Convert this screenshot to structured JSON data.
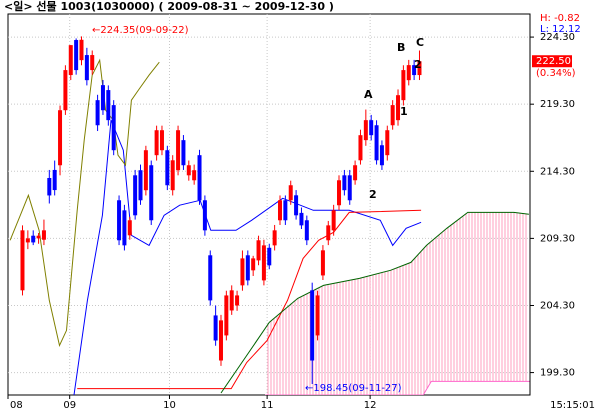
{
  "chart_data": {
    "type": "candlestick",
    "title": "<일> 선물 1003(1030000) ( 2009-08-31 ~ 2009-12-30 )",
    "up_color": "#ff0000",
    "down_color": "#0000ff",
    "values": [
      [
        205.43,
        210.27,
        205.05,
        209.9
      ],
      [
        209.0,
        209.9,
        208.5,
        209.3
      ],
      [
        209.5,
        209.9,
        208.8,
        209.0
      ],
      [
        209.3,
        209.7,
        208.9,
        209.5
      ],
      [
        209.2,
        210.7,
        208.8,
        209.9
      ],
      [
        213.8,
        214.4,
        211.9,
        212.5
      ],
      [
        214.4,
        215.1,
        212.5,
        212.9
      ],
      [
        214.75,
        219.2,
        214.0,
        218.85
      ],
      [
        218.85,
        222.2,
        218.5,
        221.84
      ],
      [
        221.47,
        223.7,
        221.1,
        223.7
      ],
      [
        224.08,
        224.2,
        221.5,
        221.84
      ],
      [
        222.58,
        224.35,
        222.2,
        224.1
      ],
      [
        222.96,
        223.5,
        220.7,
        221.09
      ],
      [
        221.84,
        223.3,
        221.5,
        222.96
      ],
      [
        219.6,
        220.0,
        217.3,
        217.73
      ],
      [
        220.72,
        221.1,
        218.5,
        218.85
      ],
      [
        220.35,
        220.7,
        217.7,
        218.11
      ],
      [
        219.23,
        219.6,
        215.5,
        215.87
      ],
      [
        212.14,
        212.5,
        208.8,
        209.16
      ],
      [
        211.39,
        211.8,
        208.4,
        208.78
      ],
      [
        209.53,
        210.9,
        209.2,
        210.65
      ],
      [
        214.0,
        214.4,
        210.7,
        211.02
      ],
      [
        214.38,
        214.8,
        211.8,
        212.14
      ],
      [
        212.89,
        216.2,
        212.5,
        215.87
      ],
      [
        214.75,
        215.1,
        210.3,
        210.65
      ],
      [
        215.5,
        217.7,
        215.1,
        217.36
      ],
      [
        215.87,
        217.7,
        215.5,
        217.36
      ],
      [
        215.87,
        216.2,
        212.9,
        213.26
      ],
      [
        212.89,
        215.5,
        212.5,
        215.12
      ],
      [
        214.38,
        217.7,
        214.0,
        217.36
      ],
      [
        216.62,
        217.0,
        214.4,
        214.75
      ],
      [
        214.0,
        215.1,
        213.6,
        214.75
      ],
      [
        213.63,
        214.8,
        213.3,
        214.38
      ],
      [
        215.5,
        215.9,
        211.8,
        212.14
      ],
      [
        212.14,
        212.5,
        209.5,
        209.9
      ],
      [
        208.04,
        208.4,
        204.3,
        204.68
      ],
      [
        203.56,
        204.3,
        201.3,
        201.69
      ],
      [
        200.2,
        203.6,
        199.8,
        203.19
      ],
      [
        202.07,
        205.4,
        201.7,
        205.05
      ],
      [
        203.93,
        205.8,
        203.6,
        205.43
      ],
      [
        204.3,
        205.4,
        203.9,
        205.05
      ],
      [
        205.8,
        208.4,
        205.4,
        207.81
      ],
      [
        208.04,
        208.4,
        205.8,
        206.17
      ],
      [
        206.92,
        208.0,
        206.5,
        207.81
      ],
      [
        207.66,
        209.5,
        207.3,
        209.16
      ],
      [
        206.17,
        209.2,
        205.8,
        208.78
      ],
      [
        208.6,
        208.9,
        207.0,
        207.29
      ],
      [
        208.78,
        210.3,
        208.4,
        209.9
      ],
      [
        210.65,
        212.5,
        210.3,
        212.14
      ],
      [
        212.14,
        212.5,
        210.3,
        210.65
      ],
      [
        212.14,
        213.6,
        211.8,
        213.26
      ],
      [
        212.51,
        212.9,
        210.7,
        211.02
      ],
      [
        211.2,
        211.6,
        210.0,
        210.27
      ],
      [
        210.65,
        211.0,
        208.8,
        209.16
      ],
      [
        205.43,
        206.0,
        198.45,
        200.2
      ],
      [
        202.07,
        205.4,
        201.7,
        205.05
      ],
      [
        206.54,
        208.8,
        206.2,
        208.41
      ],
      [
        209.16,
        210.6,
        208.8,
        210.27
      ],
      [
        209.9,
        211.8,
        209.5,
        211.39
      ],
      [
        211.77,
        214.0,
        211.4,
        213.63
      ],
      [
        214.0,
        214.4,
        212.5,
        212.89
      ],
      [
        214.0,
        214.4,
        211.8,
        212.14
      ],
      [
        213.63,
        215.1,
        213.3,
        214.75
      ],
      [
        215.12,
        217.4,
        214.8,
        216.99
      ],
      [
        216.62,
        218.9,
        216.2,
        218.11
      ],
      [
        218.11,
        218.5,
        216.6,
        216.99
      ],
      [
        217.73,
        218.1,
        214.8,
        215.12
      ],
      [
        216.24,
        216.6,
        214.4,
        214.75
      ],
      [
        215.5,
        217.7,
        215.1,
        217.36
      ],
      [
        217.73,
        219.6,
        217.4,
        219.23
      ],
      [
        218.11,
        220.4,
        217.7,
        219.97
      ],
      [
        219.6,
        222.2,
        219.2,
        221.84
      ],
      [
        221.09,
        222.6,
        220.7,
        222.21
      ],
      [
        222.21,
        222.6,
        221.1,
        221.47
      ],
      [
        221.47,
        223.3,
        221.1,
        222.5
      ]
    ],
    "lines": [
      {
        "color": "#0000ff",
        "x": [
          9.6,
          12.1,
          14.9,
          16.5,
          18.8,
          20.3,
          23.6,
          26.4,
          29.3,
          33.1,
          35.1,
          39.8,
          42.7,
          48.5,
          54.2,
          60.9,
          66.7,
          69,
          71.5,
          74.3
        ],
        "values": [
          197.63,
          204.68,
          211.02,
          218.11,
          215.87,
          209.53,
          208.78,
          211.02,
          211.77,
          212.14,
          209.9,
          209.9,
          210.65,
          212.29,
          211.39,
          211.39,
          210.65,
          208.78,
          210.05,
          210.5
        ]
      },
      {
        "color": "#ff0000",
        "x": [
          10.2,
          38.9,
          41.8,
          45.6,
          49.4,
          52.3,
          55.2,
          58,
          60.9,
          74.3
        ],
        "values": [
          198.11,
          198.11,
          200.05,
          201.69,
          204.68,
          207.81,
          209.16,
          209.75,
          211.24,
          211.39
        ]
      },
      {
        "color": "#808000",
        "x": [
          -2.3,
          -0.4,
          1.1,
          3.1,
          5,
          6.9,
          8.2,
          10.2,
          11.5,
          13,
          14.4,
          15.5,
          16.9,
          17.8,
          19.2,
          20.3,
          21.6,
          23.6,
          25.5
        ],
        "values": [
          209.16,
          211.02,
          212.51,
          209.9,
          204.68,
          201.32,
          202.44,
          211.39,
          216.62,
          221.47,
          222.58,
          218.85,
          218.11,
          215.5,
          214.75,
          219.6,
          220.35,
          221.47,
          222.43
        ]
      },
      {
        "color": "#006400",
        "x": [
          37,
          41.8,
          46,
          51.3,
          56.1,
          62.8,
          68.6,
          72.4,
          75.3,
          79.1,
          83,
          91.6,
          94.4
        ],
        "values": [
          197.78,
          200.57,
          203.04,
          204.83,
          205.8,
          206.32,
          206.92,
          207.51,
          208.78,
          210.05,
          211.24,
          211.24,
          211.1
        ]
      },
      {
        "color": "#ff66cc",
        "x": [
          45.2,
          74.7,
          76.2,
          94.5
        ],
        "values": [
          197.63,
          197.63,
          198.64,
          198.64
        ]
      }
    ],
    "cloud_color": "#ff9fbf",
    "xlim": [
      -2.7,
      94.6
    ],
    "xticks": [
      {
        "value": -2.7,
        "label": "08"
      },
      {
        "value": 8.8,
        "label": "09"
      },
      {
        "value": 27.4,
        "label": "10"
      },
      {
        "value": 45.6,
        "label": "11"
      },
      {
        "value": 64.8,
        "label": "12"
      }
    ],
    "ylim": [
      197.63,
      226.02
    ],
    "yticks": [
      {
        "value": 199.3,
        "label": "199.30"
      },
      {
        "value": 204.3,
        "label": "204.30"
      },
      {
        "value": 209.3,
        "label": "209.30"
      },
      {
        "value": 214.3,
        "label": "214.30"
      },
      {
        "value": 219.3,
        "label": "219.30"
      },
      {
        "value": 224.3,
        "label": "224.30"
      }
    ],
    "grid": true,
    "current_price": {
      "value": 222.5,
      "label": "222.50"
    },
    "change": "(0.34%)",
    "high_info": "H: -0.82",
    "low_info": "L: 12.12",
    "time": "15:15:01",
    "annotations": [
      {
        "text": "←224.35(09-09-22)",
        "color": "#ff0000"
      },
      {
        "text": "←198.45(09-11-27)",
        "color": "#0000ff"
      },
      {
        "text": "A",
        "color": "#000000"
      },
      {
        "text": "B",
        "color": "#000000"
      },
      {
        "text": "C",
        "color": "#000000"
      },
      {
        "text": "2",
        "color": "#000000"
      },
      {
        "text": "1",
        "color": "#000000"
      },
      {
        "text": "2",
        "color": "#000000"
      }
    ]
  }
}
